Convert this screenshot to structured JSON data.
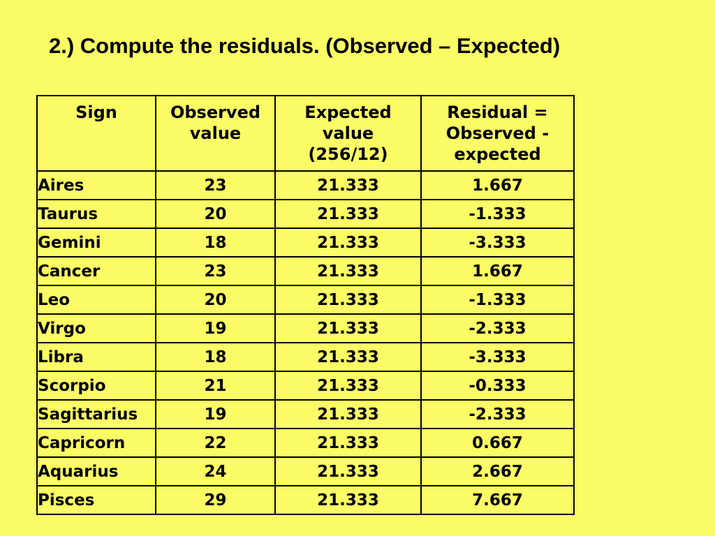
{
  "slide": {
    "title": "2.) Compute the residuals. (Observed – Expected)",
    "background_color": "#FCFC66",
    "text_color": "#000000",
    "border_color": "#000000"
  },
  "table": {
    "headers": [
      "Sign",
      "Observed\nvalue",
      "Expected\nvalue\n(256/12)",
      "Residual =\nObserved -\nexpected"
    ],
    "rows": [
      {
        "sign": "Aires",
        "observed": "23",
        "expected": "21.333",
        "residual": "1.667"
      },
      {
        "sign": "Taurus",
        "observed": "20",
        "expected": "21.333",
        "residual": "-1.333"
      },
      {
        "sign": "Gemini",
        "observed": "18",
        "expected": "21.333",
        "residual": "-3.333"
      },
      {
        "sign": "Cancer",
        "observed": "23",
        "expected": "21.333",
        "residual": "1.667"
      },
      {
        "sign": "Leo",
        "observed": "20",
        "expected": "21.333",
        "residual": "-1.333"
      },
      {
        "sign": "Virgo",
        "observed": "19",
        "expected": "21.333",
        "residual": "-2.333"
      },
      {
        "sign": "Libra",
        "observed": "18",
        "expected": "21.333",
        "residual": "-3.333"
      },
      {
        "sign": "Scorpio",
        "observed": "21",
        "expected": "21.333",
        "residual": "-0.333"
      },
      {
        "sign": "Sagittarius",
        "observed": "19",
        "expected": "21.333",
        "residual": "-2.333"
      },
      {
        "sign": "Capricorn",
        "observed": "22",
        "expected": "21.333",
        "residual": "0.667"
      },
      {
        "sign": "Aquarius",
        "observed": "24",
        "expected": "21.333",
        "residual": "2.667"
      },
      {
        "sign": "Pisces",
        "observed": "29",
        "expected": "21.333",
        "residual": "7.667"
      }
    ]
  },
  "chart_data": {
    "type": "table",
    "columns": [
      "Sign",
      "Observed value",
      "Expected value (256/12)",
      "Residual = Observed - expected"
    ],
    "rows": [
      [
        "Aires",
        23,
        21.333,
        1.667
      ],
      [
        "Taurus",
        20,
        21.333,
        -1.333
      ],
      [
        "Gemini",
        18,
        21.333,
        -3.333
      ],
      [
        "Cancer",
        23,
        21.333,
        1.667
      ],
      [
        "Leo",
        20,
        21.333,
        -1.333
      ],
      [
        "Virgo",
        19,
        21.333,
        -2.333
      ],
      [
        "Libra",
        18,
        21.333,
        -3.333
      ],
      [
        "Scorpio",
        21,
        21.333,
        -0.333
      ],
      [
        "Sagittarius",
        19,
        21.333,
        -2.333
      ],
      [
        "Capricorn",
        22,
        21.333,
        0.667
      ],
      [
        "Aquarius",
        24,
        21.333,
        2.667
      ],
      [
        "Pisces",
        29,
        21.333,
        7.667
      ]
    ],
    "title": "2.) Compute the residuals. (Observed – Expected)"
  }
}
